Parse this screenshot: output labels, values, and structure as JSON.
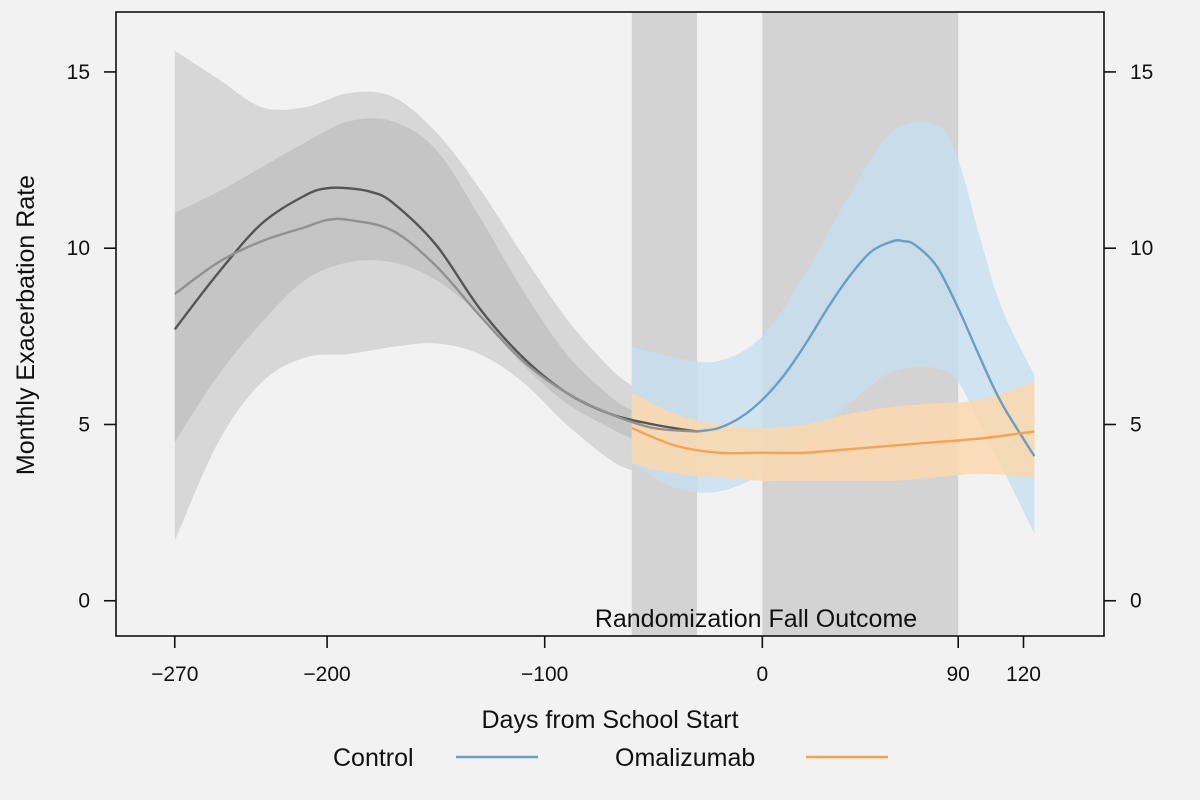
{
  "chart_data": {
    "type": "line",
    "title": "",
    "xlabel": "Days from School Start",
    "ylabel": "Monthly Exacerbation Rate",
    "xlim": [
      -297,
      157
    ],
    "ylim": [
      -1,
      16.7
    ],
    "x_ticks": [
      -270,
      -200,
      -100,
      0,
      90,
      120
    ],
    "x_tick_labels": [
      "−270",
      "−200",
      "−100",
      "0",
      "90",
      "120"
    ],
    "y_ticks": [
      0,
      5,
      10,
      15
    ],
    "y_tick_labels": [
      "0",
      "5",
      "10",
      "15"
    ],
    "right_y_axis": true,
    "grid": false,
    "legend_position": "bottom",
    "periods": [
      {
        "label": "Randomization",
        "x_start": -60,
        "x_end": -30,
        "color": "#d3d3d3"
      },
      {
        "label": "Fall Outcome",
        "x_start": 0,
        "x_end": 90,
        "color": "#d3d3d3"
      }
    ],
    "period_label_line": "Randomization  Fall Outcome",
    "colors": {
      "control": "#6a9ec6",
      "control_band": "#c6deef",
      "omalizumab": "#f5a255",
      "omalizumab_band": "#fcd8ae",
      "pre_wide_band": "#cdcdcd",
      "pre_inner_band": "#b7b7b7",
      "pre_line_dark": "#555555",
      "pre_line_light": "#919191"
    },
    "bands": [
      {
        "id": "pre-wide-band",
        "x": [
          -270,
          -250,
          -230,
          -210,
          -190,
          -170,
          -150,
          -130,
          -110,
          -90,
          -70,
          -60
        ],
        "lower": [
          1.7,
          4.5,
          6.2,
          6.9,
          7.0,
          7.2,
          7.3,
          7.0,
          6.2,
          5.0,
          4.0,
          3.7
        ],
        "upper": [
          15.6,
          14.8,
          14.0,
          14.0,
          14.4,
          14.3,
          13.3,
          11.7,
          9.8,
          8.0,
          6.6,
          6.1
        ]
      },
      {
        "id": "pre-inner-band",
        "x": [
          -270,
          -250,
          -230,
          -210,
          -190,
          -170,
          -150,
          -130,
          -110,
          -90,
          -70,
          -60
        ],
        "lower": [
          4.5,
          6.4,
          7.9,
          9.1,
          9.6,
          9.6,
          9.1,
          8.1,
          6.7,
          5.6,
          4.9,
          4.6
        ],
        "upper": [
          11.0,
          11.6,
          12.3,
          13.0,
          13.6,
          13.6,
          12.8,
          10.9,
          8.8,
          7.0,
          5.8,
          5.4
        ]
      },
      {
        "id": "control-band",
        "x": [
          -60,
          -40,
          -20,
          0,
          20,
          40,
          60,
          80,
          90,
          100,
          110,
          125
        ],
        "lower": [
          3.9,
          3.2,
          3.1,
          3.6,
          4.5,
          5.6,
          6.5,
          6.6,
          6.2,
          5.0,
          3.8,
          1.9
        ],
        "upper": [
          7.2,
          6.9,
          6.8,
          7.5,
          9.3,
          11.5,
          13.3,
          13.5,
          12.5,
          10.3,
          8.3,
          6.4
        ]
      },
      {
        "id": "omalizumab-band",
        "x": [
          -60,
          -40,
          -20,
          0,
          20,
          40,
          60,
          80,
          100,
          125
        ],
        "lower": [
          3.9,
          3.6,
          3.5,
          3.4,
          3.4,
          3.4,
          3.4,
          3.5,
          3.6,
          3.5
        ],
        "upper": [
          5.9,
          5.3,
          5.0,
          4.9,
          5.0,
          5.3,
          5.5,
          5.6,
          5.7,
          6.2
        ]
      }
    ],
    "series": [
      {
        "id": "pre-dark-line",
        "x": [
          -270,
          -250,
          -230,
          -210,
          -200,
          -190,
          -180,
          -170,
          -150,
          -130,
          -110,
          -90,
          -70,
          -50,
          -30
        ],
        "y": [
          7.7,
          9.3,
          10.7,
          11.5,
          11.7,
          11.7,
          11.6,
          11.3,
          10.1,
          8.3,
          6.9,
          5.9,
          5.3,
          5.0,
          4.8
        ]
      },
      {
        "id": "pre-light-line",
        "x": [
          -270,
          -250,
          -230,
          -210,
          -200,
          -190,
          -170,
          -150,
          -130,
          -110,
          -90,
          -70,
          -50,
          -30
        ],
        "y": [
          8.7,
          9.6,
          10.2,
          10.6,
          10.8,
          10.8,
          10.5,
          9.5,
          8.1,
          6.8,
          5.9,
          5.3,
          4.9,
          4.8
        ]
      },
      {
        "name": "Control",
        "id": "control-line",
        "x": [
          -30,
          -20,
          -10,
          0,
          10,
          20,
          30,
          40,
          50,
          60,
          65,
          70,
          80,
          90,
          100,
          110,
          125
        ],
        "y": [
          4.8,
          4.9,
          5.2,
          5.7,
          6.4,
          7.3,
          8.3,
          9.2,
          9.9,
          10.2,
          10.2,
          10.1,
          9.5,
          8.3,
          6.9,
          5.6,
          4.1
        ]
      },
      {
        "name": "Omalizumab",
        "id": "omalizumab-line",
        "x": [
          -60,
          -40,
          -20,
          0,
          20,
          40,
          60,
          80,
          100,
          125
        ],
        "y": [
          4.9,
          4.4,
          4.2,
          4.2,
          4.2,
          4.3,
          4.4,
          4.5,
          4.6,
          4.8
        ]
      }
    ],
    "legend": [
      {
        "label": "Control",
        "color": "#6a9ec6"
      },
      {
        "label": "Omalizumab",
        "color": "#f5a255"
      }
    ]
  }
}
